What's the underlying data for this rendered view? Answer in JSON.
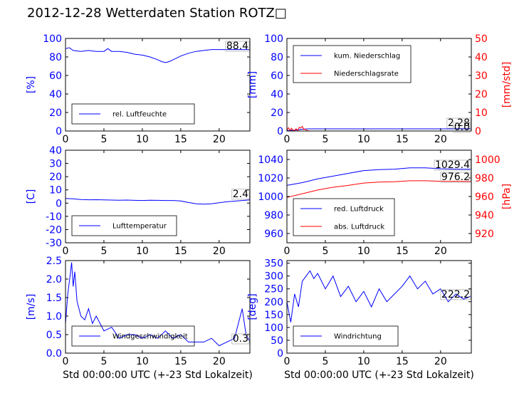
{
  "title": "2012-12-28 Wetterdaten Station ROTZ□",
  "colors": {
    "blue": "#0000ff",
    "red": "#ff0000",
    "light_blue": "#8080ff",
    "black": "#000000"
  },
  "chart_data": [
    {
      "type": "line",
      "id": "humidity",
      "xlim": [
        0,
        24
      ],
      "ylim": [
        0,
        100
      ],
      "xticks": [
        0,
        5,
        10,
        15,
        20
      ],
      "yticks": [
        0,
        20,
        40,
        60,
        80,
        100
      ],
      "ylabel": "[%]",
      "xlabel": "",
      "current_value": "88.4",
      "legend": {
        "placement": "lower-left",
        "entries": [
          "rel. Luftfeuchte"
        ]
      },
      "series": [
        {
          "name": "rel. Luftfeuchte",
          "color": "#0000ff",
          "x": [
            0,
            0.5,
            1,
            2,
            3,
            4,
            5,
            5.5,
            6,
            7,
            8,
            9,
            10,
            11,
            12,
            12.5,
            13,
            13.5,
            14,
            15,
            16,
            17,
            18,
            19,
            20,
            21,
            22,
            23,
            24
          ],
          "y": [
            89,
            90,
            87,
            86,
            87,
            86,
            86,
            89,
            86,
            86,
            85,
            83,
            82,
            80,
            77,
            75,
            74,
            75,
            77,
            81,
            84,
            86,
            87,
            88,
            88,
            88,
            88,
            88,
            88
          ]
        }
      ]
    },
    {
      "type": "line",
      "id": "precip",
      "xlim": [
        0,
        24
      ],
      "ylim": [
        0,
        100
      ],
      "y2lim": [
        0,
        50
      ],
      "xticks": [
        0,
        5,
        10,
        15,
        20
      ],
      "yticks": [
        0,
        20,
        40,
        60,
        80,
        100
      ],
      "y2ticks": [
        0,
        10,
        20,
        30,
        40,
        50
      ],
      "ylabel": "[mm]",
      "y2label": "[mm/std]",
      "current_values": [
        "2.28",
        "0.0"
      ],
      "legend": {
        "placement": "top-left",
        "entries": [
          "kum. Niederschlag",
          "Niederschlagsrate"
        ]
      },
      "series": [
        {
          "name": "kum. Niederschlag",
          "color": "#0000ff",
          "axis": "left",
          "x": [
            0,
            0.5,
            1,
            1.5,
            2,
            2.5,
            3,
            24
          ],
          "y": [
            0.4,
            0.8,
            1.0,
            1.4,
            1.9,
            2.2,
            2.28,
            2.28
          ]
        },
        {
          "name": "Niederschlagsrate",
          "color": "#ff0000",
          "axis": "right",
          "x": [
            0,
            0.2,
            0.4,
            0.6,
            0.8,
            1.0,
            1.2,
            1.4,
            1.6,
            1.8,
            2.0,
            2.2,
            2.4,
            2.6,
            2.8,
            3.0,
            24
          ],
          "y": [
            0.5,
            1.8,
            0.3,
            1.5,
            0.2,
            0.4,
            1.2,
            0.3,
            2.0,
            1.6,
            2.5,
            0.8,
            1.0,
            0.2,
            0.1,
            0,
            0
          ]
        }
      ]
    },
    {
      "type": "line",
      "id": "temperature",
      "xlim": [
        0,
        24
      ],
      "ylim": [
        -30,
        40
      ],
      "xticks": [
        0,
        5,
        10,
        15,
        20
      ],
      "yticks": [
        -30,
        -20,
        -10,
        0,
        10,
        20,
        30,
        40
      ],
      "ylabel": "[C]",
      "current_value": "2.4",
      "legend": {
        "placement": "lower-left",
        "entries": [
          "Lufttemperatur"
        ]
      },
      "series": [
        {
          "name": "Lufttemperatur",
          "color": "#0000ff",
          "x": [
            0,
            1,
            2,
            3,
            4,
            5,
            6,
            7,
            8,
            9,
            10,
            11,
            12,
            13,
            14,
            15,
            16,
            17,
            18,
            19,
            20,
            21,
            22,
            23,
            24
          ],
          "y": [
            3.5,
            3.3,
            2.7,
            2.5,
            2.6,
            2.4,
            2.3,
            2.2,
            2.3,
            2.1,
            2.0,
            2.2,
            2.1,
            2.0,
            2.0,
            1.6,
            0.5,
            -0.5,
            -0.8,
            -0.5,
            0.3,
            1.0,
            1.5,
            2.0,
            2.4
          ]
        }
      ]
    },
    {
      "type": "line",
      "id": "pressure",
      "xlim": [
        0,
        24
      ],
      "ylim": [
        950,
        1050
      ],
      "y2lim": [
        910,
        1010
      ],
      "xticks": [
        0,
        5,
        10,
        15,
        20
      ],
      "yticks": [
        960,
        980,
        1000,
        1020,
        1040
      ],
      "y2ticks": [
        920,
        940,
        960,
        980,
        1000
      ],
      "ylabel": "",
      "y2label": "[hPa]",
      "current_values": [
        "1029.4",
        "976.2"
      ],
      "legend": {
        "placement": "lower-left",
        "entries": [
          "red. Luftdruck",
          "abs. Luftdruck"
        ]
      },
      "series": [
        {
          "name": "red. Luftdruck",
          "color": "#0000ff",
          "axis": "left",
          "x": [
            0,
            2,
            4,
            6,
            8,
            10,
            12,
            14,
            16,
            18,
            20,
            22,
            24
          ],
          "y": [
            1012,
            1015,
            1019,
            1022,
            1025,
            1028,
            1029,
            1029.5,
            1031,
            1031,
            1030,
            1029.5,
            1029.4
          ]
        },
        {
          "name": "abs. Luftdruck",
          "color": "#ff0000",
          "axis": "right",
          "x": [
            0,
            2,
            4,
            6,
            8,
            10,
            12,
            14,
            16,
            18,
            20,
            22,
            24
          ],
          "y": [
            959,
            963,
            967,
            970,
            972,
            974.5,
            975.5,
            976,
            977,
            977,
            976.5,
            976.3,
            976.2
          ]
        }
      ]
    },
    {
      "type": "line",
      "id": "windspeed",
      "xlim": [
        0,
        24
      ],
      "ylim": [
        0,
        2.5
      ],
      "xticks": [
        0,
        5,
        10,
        15,
        20
      ],
      "yticks": [
        0.0,
        0.5,
        1.0,
        1.5,
        2.0,
        2.5
      ],
      "ylabel": "[m/s]",
      "xlabel": "Std 00:00:00 UTC (+-23 Std Lokalzeit)",
      "current_value": "0.3",
      "legend": {
        "placement": "lower-left",
        "entries": [
          "Windgeschwindigkeit"
        ]
      },
      "series": [
        {
          "name": "Windgeschwindigkeit",
          "color": "#0000ff",
          "x": [
            0,
            0.3,
            0.6,
            0.8,
            1.0,
            1.2,
            1.5,
            2.0,
            2.5,
            3,
            3.5,
            4,
            5,
            6,
            7,
            8,
            9,
            10,
            11,
            12,
            13,
            14,
            15,
            16,
            17,
            18,
            19,
            20,
            21,
            22,
            22.5,
            23,
            23.5,
            24
          ],
          "y": [
            0.8,
            1.6,
            2.1,
            2.45,
            1.8,
            2.2,
            1.4,
            1.0,
            0.9,
            1.2,
            0.8,
            1.0,
            0.6,
            0.7,
            0.4,
            0.5,
            0.5,
            0.4,
            0.5,
            0.4,
            0.6,
            0.4,
            0.5,
            0.3,
            0.3,
            0.3,
            0.4,
            0.2,
            0.3,
            0.4,
            0.8,
            1.2,
            0.5,
            0.3
          ]
        }
      ]
    },
    {
      "type": "line",
      "id": "winddir",
      "xlim": [
        0,
        24
      ],
      "ylim": [
        0,
        360
      ],
      "xticks": [
        0,
        5,
        10,
        15,
        20
      ],
      "yticks": [
        0,
        50,
        100,
        150,
        200,
        250,
        300,
        350
      ],
      "ylabel": "[deg]",
      "xlabel": "Std 00:00:00 UTC (+-23 Std Lokalzeit)",
      "current_value": "222.2",
      "legend": {
        "placement": "lower-left",
        "entries": [
          "Windrichtung"
        ]
      },
      "series": [
        {
          "name": "Windrichtung",
          "color": "#0000ff",
          "x": [
            0,
            0.5,
            1,
            1.5,
            2,
            2.5,
            3,
            3.5,
            4,
            5,
            6,
            7,
            8,
            9,
            10,
            11,
            12,
            13,
            14,
            15,
            16,
            17,
            18,
            19,
            20,
            21,
            22,
            23,
            24
          ],
          "y": [
            200,
            120,
            230,
            180,
            280,
            300,
            320,
            290,
            310,
            250,
            300,
            220,
            260,
            200,
            240,
            180,
            250,
            200,
            230,
            260,
            300,
            250,
            280,
            230,
            250,
            200,
            230,
            210,
            222
          ]
        }
      ]
    }
  ]
}
